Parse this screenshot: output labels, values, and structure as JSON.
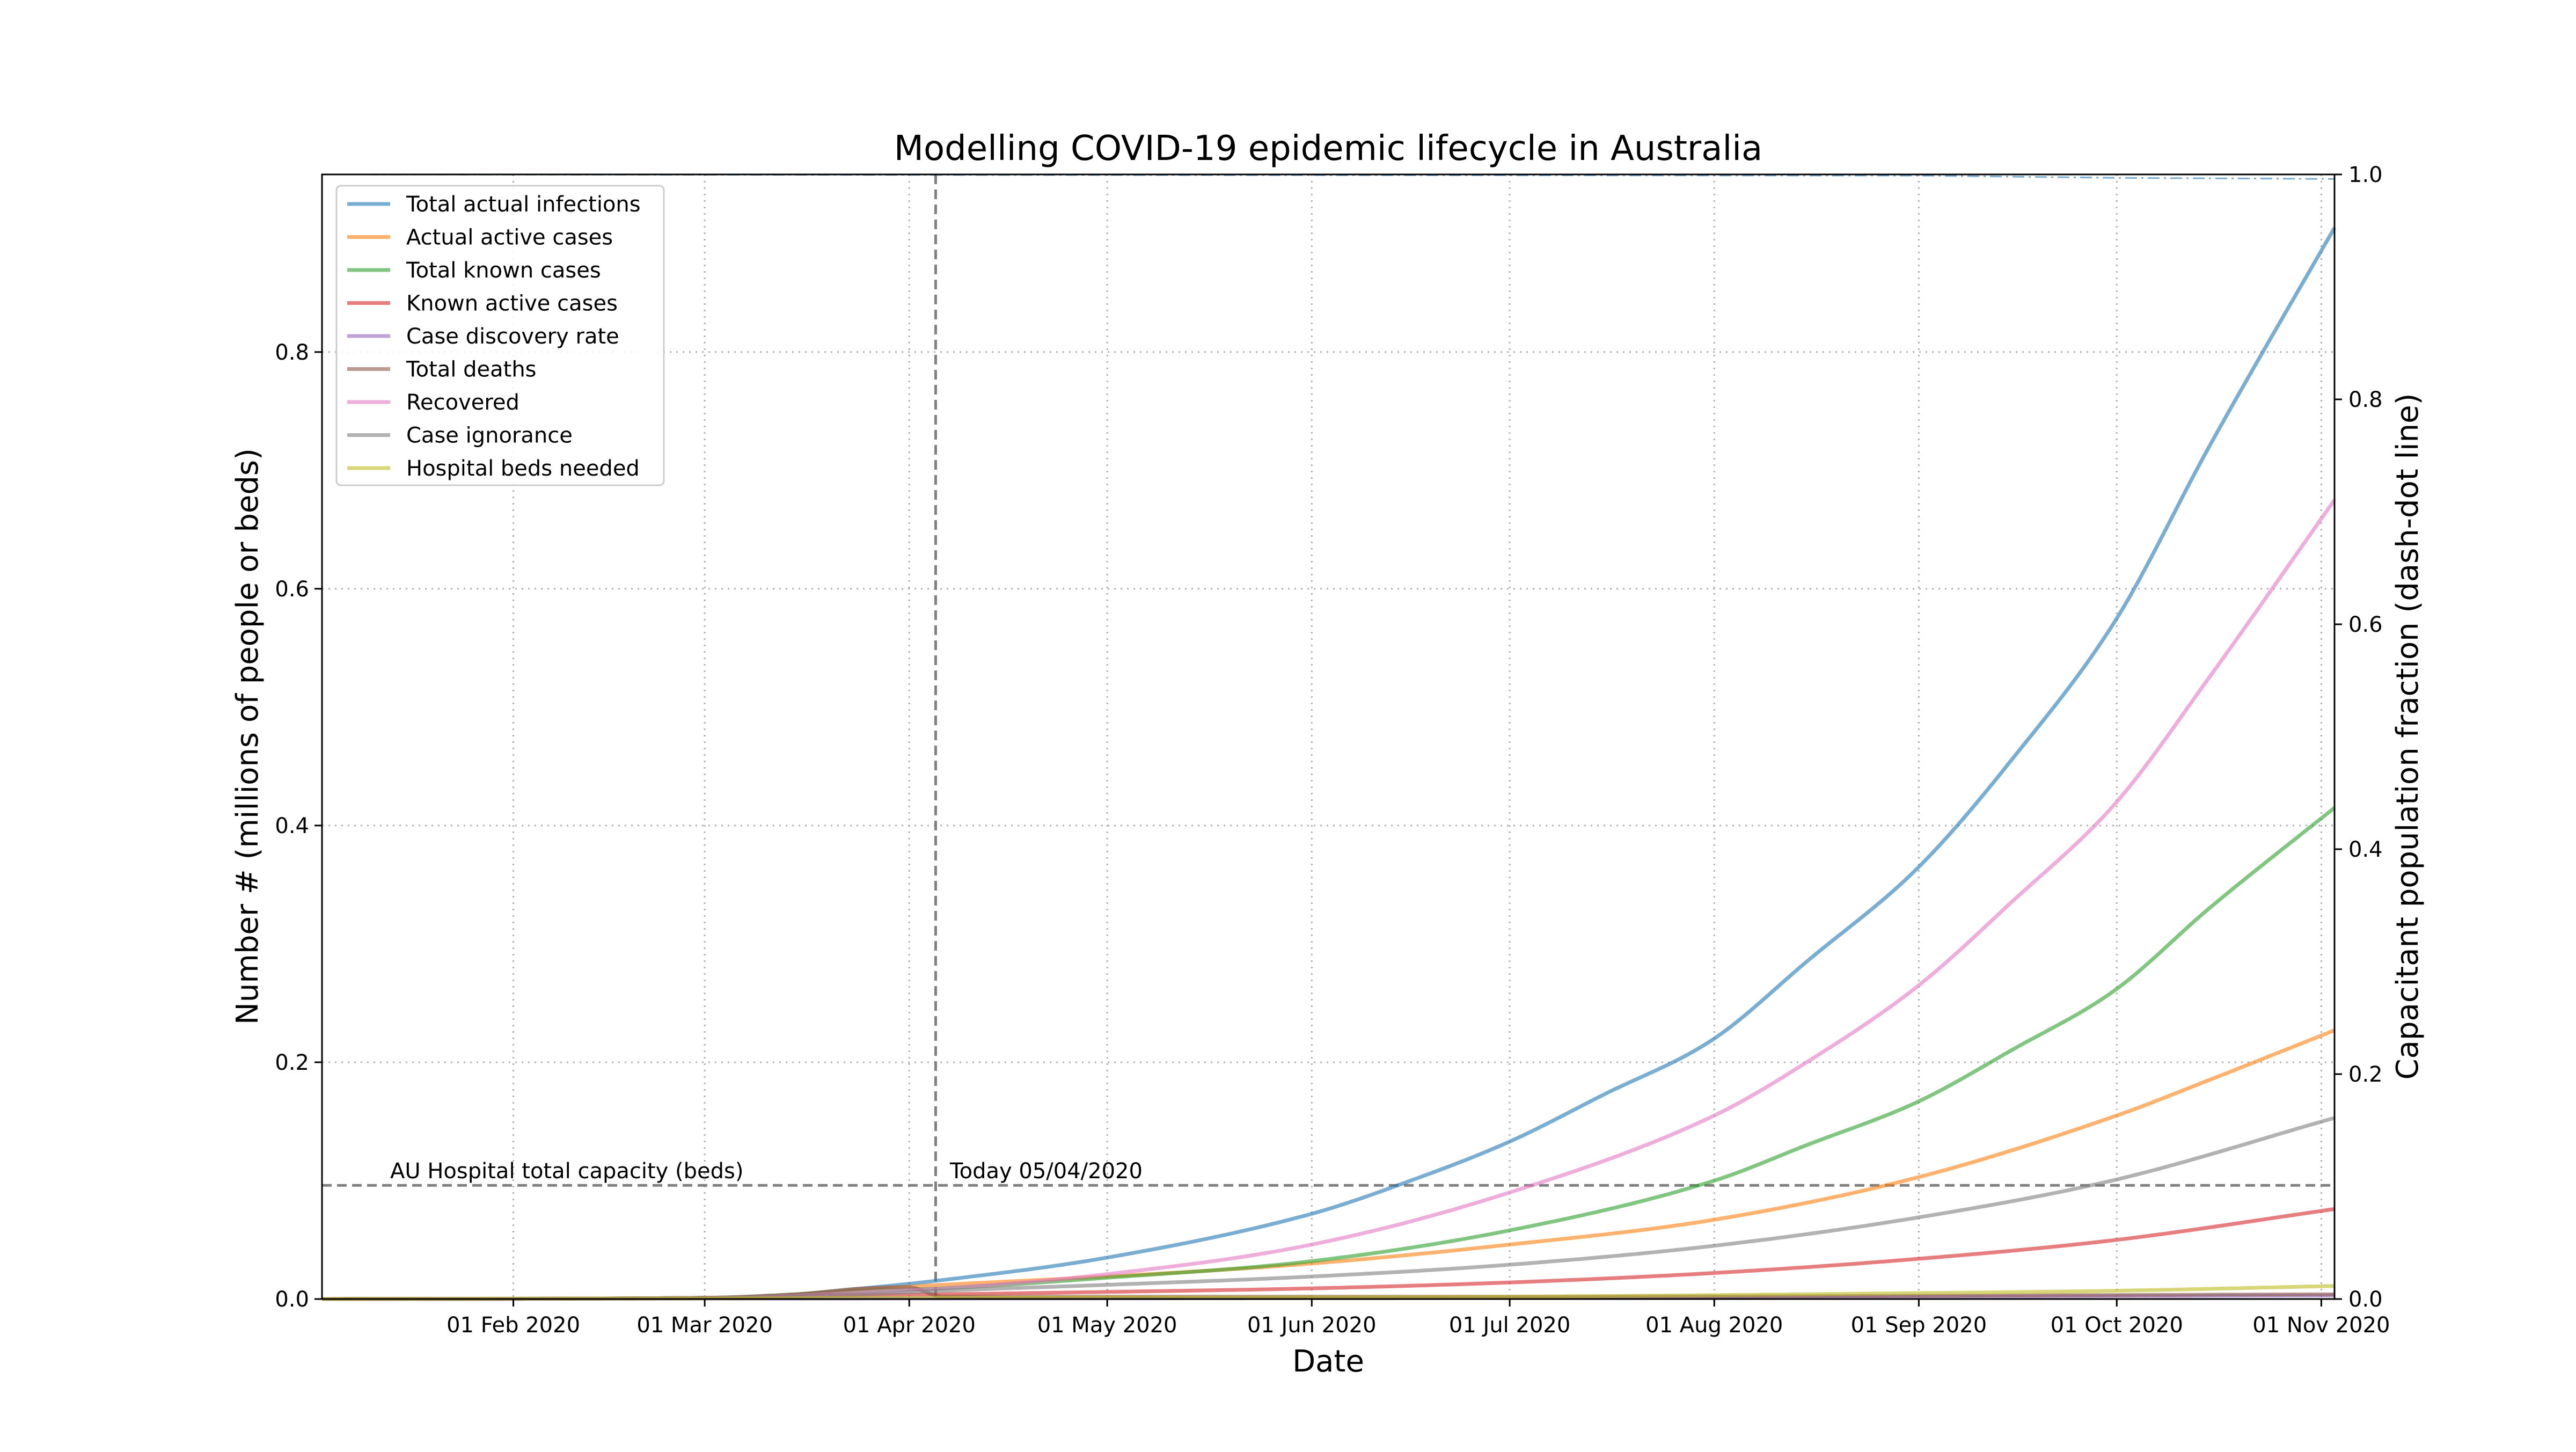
{
  "chart_data": {
    "type": "line",
    "title": "Modelling COVID-19 epidemic lifecycle in Australia",
    "xlabel": "Date",
    "ylabel": "Number # (millions of people or beds)",
    "y2label": "Capacitant population fraction (dash-dot line)",
    "x_range": [
      "2020-01-03",
      "2020-11-03"
    ],
    "ylim": [
      0,
      0.95
    ],
    "y2lim": [
      0,
      1.0
    ],
    "grid": true,
    "grid_style": "dotted",
    "legend_position": "top-left",
    "x_ticks": [
      {
        "date": "2020-02-01",
        "label": "01 Feb 2020"
      },
      {
        "date": "2020-03-01",
        "label": "01 Mar 2020"
      },
      {
        "date": "2020-04-01",
        "label": "01 Apr 2020"
      },
      {
        "date": "2020-05-01",
        "label": "01 May 2020"
      },
      {
        "date": "2020-06-01",
        "label": "01 Jun 2020"
      },
      {
        "date": "2020-07-01",
        "label": "01 Jul 2020"
      },
      {
        "date": "2020-08-01",
        "label": "01 Aug 2020"
      },
      {
        "date": "2020-09-01",
        "label": "01 Sep 2020"
      },
      {
        "date": "2020-10-01",
        "label": "01 Oct 2020"
      },
      {
        "date": "2020-11-01",
        "label": "01 Nov 2020"
      }
    ],
    "y_ticks": [
      {
        "value": 0.0,
        "label": "0.0"
      },
      {
        "value": 0.2,
        "label": "0.2"
      },
      {
        "value": 0.4,
        "label": "0.4"
      },
      {
        "value": 0.6,
        "label": "0.6"
      },
      {
        "value": 0.8,
        "label": "0.8"
      }
    ],
    "y2_ticks": [
      {
        "value": 0.0,
        "label": "0.0"
      },
      {
        "value": 0.2,
        "label": "0.2"
      },
      {
        "value": 0.4,
        "label": "0.4"
      },
      {
        "value": 0.6,
        "label": "0.6"
      },
      {
        "value": 0.8,
        "label": "0.8"
      },
      {
        "value": 1.0,
        "label": "1.0"
      }
    ],
    "series": [
      {
        "name": "Total actual infections",
        "color": "#1f77b4",
        "points": [
          [
            "2020-01-03",
            0
          ],
          [
            "2020-03-01",
            0.001
          ],
          [
            "2020-03-15",
            0.004
          ],
          [
            "2020-03-25",
            0.009
          ],
          [
            "2020-04-06",
            0.016
          ],
          [
            "2020-05-01",
            0.035
          ],
          [
            "2020-06-01",
            0.072
          ],
          [
            "2020-06-15",
            0.098
          ],
          [
            "2020-07-01",
            0.133
          ],
          [
            "2020-07-15",
            0.172
          ],
          [
            "2020-08-01",
            0.22
          ],
          [
            "2020-08-15",
            0.285
          ],
          [
            "2020-09-01",
            0.365
          ],
          [
            "2020-09-15",
            0.455
          ],
          [
            "2020-10-01",
            0.575
          ],
          [
            "2020-10-15",
            0.72
          ],
          [
            "2020-11-03",
            0.905
          ]
        ]
      },
      {
        "name": "Actual active cases",
        "color": "#ff7f0e",
        "points": [
          [
            "2020-01-03",
            0
          ],
          [
            "2020-03-01",
            0.001
          ],
          [
            "2020-03-15",
            0.004
          ],
          [
            "2020-03-25",
            0.008
          ],
          [
            "2020-04-06",
            0.012
          ],
          [
            "2020-05-01",
            0.019
          ],
          [
            "2020-06-01",
            0.03
          ],
          [
            "2020-07-01",
            0.046
          ],
          [
            "2020-08-01",
            0.067
          ],
          [
            "2020-09-01",
            0.103
          ],
          [
            "2020-10-01",
            0.155
          ],
          [
            "2020-10-15",
            0.185
          ],
          [
            "2020-11-03",
            0.227
          ]
        ]
      },
      {
        "name": "Total known cases",
        "color": "#2ca02c",
        "points": [
          [
            "2020-01-03",
            0
          ],
          [
            "2020-03-01",
            0.001
          ],
          [
            "2020-03-15",
            0.004
          ],
          [
            "2020-03-25",
            0.007
          ],
          [
            "2020-04-06",
            0.009
          ],
          [
            "2020-05-01",
            0.018
          ],
          [
            "2020-06-01",
            0.032
          ],
          [
            "2020-07-01",
            0.058
          ],
          [
            "2020-08-01",
            0.1
          ],
          [
            "2020-08-15",
            0.13
          ],
          [
            "2020-09-01",
            0.167
          ],
          [
            "2020-09-15",
            0.21
          ],
          [
            "2020-10-01",
            0.262
          ],
          [
            "2020-10-15",
            0.33
          ],
          [
            "2020-11-03",
            0.415
          ]
        ]
      },
      {
        "name": "Known active cases",
        "color": "#d62728",
        "points": [
          [
            "2020-01-03",
            0
          ],
          [
            "2020-03-01",
            0.001
          ],
          [
            "2020-03-20",
            0.003
          ],
          [
            "2020-04-06",
            0.004
          ],
          [
            "2020-05-01",
            0.006
          ],
          [
            "2020-06-01",
            0.009
          ],
          [
            "2020-07-01",
            0.014
          ],
          [
            "2020-08-01",
            0.022
          ],
          [
            "2020-09-01",
            0.034
          ],
          [
            "2020-10-01",
            0.05
          ],
          [
            "2020-11-03",
            0.076
          ]
        ]
      },
      {
        "name": "Case discovery rate",
        "color": "#9467bd",
        "points": [
          [
            "2020-01-03",
            0
          ],
          [
            "2020-04-06",
            0.0005
          ],
          [
            "2020-07-01",
            0.001
          ],
          [
            "2020-09-01",
            0.002
          ],
          [
            "2020-11-03",
            0.003
          ]
        ]
      },
      {
        "name": "Total deaths",
        "color": "#8c564b",
        "points": [
          [
            "2020-01-03",
            0
          ],
          [
            "2020-03-01",
            0.001
          ],
          [
            "2020-03-15",
            0.004
          ],
          [
            "2020-03-25",
            0.009
          ],
          [
            "2020-04-01",
            0.01
          ],
          [
            "2020-04-06",
            0.002
          ],
          [
            "2020-07-01",
            0.002
          ],
          [
            "2020-11-03",
            0.004
          ]
        ]
      },
      {
        "name": "Recovered",
        "color": "#e377c2",
        "points": [
          [
            "2020-01-03",
            0
          ],
          [
            "2020-03-01",
            0.001
          ],
          [
            "2020-03-15",
            0.003
          ],
          [
            "2020-03-25",
            0.006
          ],
          [
            "2020-04-06",
            0.009
          ],
          [
            "2020-05-01",
            0.021
          ],
          [
            "2020-06-01",
            0.046
          ],
          [
            "2020-07-01",
            0.09
          ],
          [
            "2020-08-01",
            0.155
          ],
          [
            "2020-08-15",
            0.2
          ],
          [
            "2020-09-01",
            0.265
          ],
          [
            "2020-09-15",
            0.335
          ],
          [
            "2020-10-01",
            0.42
          ],
          [
            "2020-10-15",
            0.525
          ],
          [
            "2020-11-03",
            0.675
          ]
        ]
      },
      {
        "name": "Case ignorance",
        "color": "#7f7f7f",
        "points": [
          [
            "2020-01-03",
            0
          ],
          [
            "2020-03-01",
            0.001
          ],
          [
            "2020-03-25",
            0.004
          ],
          [
            "2020-04-06",
            0.007
          ],
          [
            "2020-05-01",
            0.012
          ],
          [
            "2020-06-01",
            0.019
          ],
          [
            "2020-07-01",
            0.029
          ],
          [
            "2020-08-01",
            0.045
          ],
          [
            "2020-09-01",
            0.069
          ],
          [
            "2020-10-01",
            0.101
          ],
          [
            "2020-11-03",
            0.153
          ]
        ]
      },
      {
        "name": "Hospital beds needed",
        "color": "#bcbd22",
        "points": [
          [
            "2020-01-03",
            0
          ],
          [
            "2020-04-06",
            0.001
          ],
          [
            "2020-07-01",
            0.002
          ],
          [
            "2020-09-01",
            0.005
          ],
          [
            "2020-10-01",
            0.007
          ],
          [
            "2020-11-03",
            0.011
          ]
        ]
      }
    ],
    "capacitant_fraction_line": {
      "color": "#1f77b4",
      "style": "dash-dot",
      "axis": "right",
      "points": [
        [
          "2020-01-03",
          1.0
        ],
        [
          "2020-09-01",
          0.999
        ],
        [
          "2020-10-01",
          0.997
        ],
        [
          "2020-11-03",
          0.996
        ]
      ]
    },
    "hospital_capacity_line": {
      "value": 0.096,
      "label": "AU Hospital total capacity (beds)",
      "color": "#808080",
      "style": "dashed"
    },
    "today_line": {
      "date": "2020-04-05",
      "label": "Today 05/04/2020",
      "color": "#808080",
      "style": "dashed"
    }
  }
}
